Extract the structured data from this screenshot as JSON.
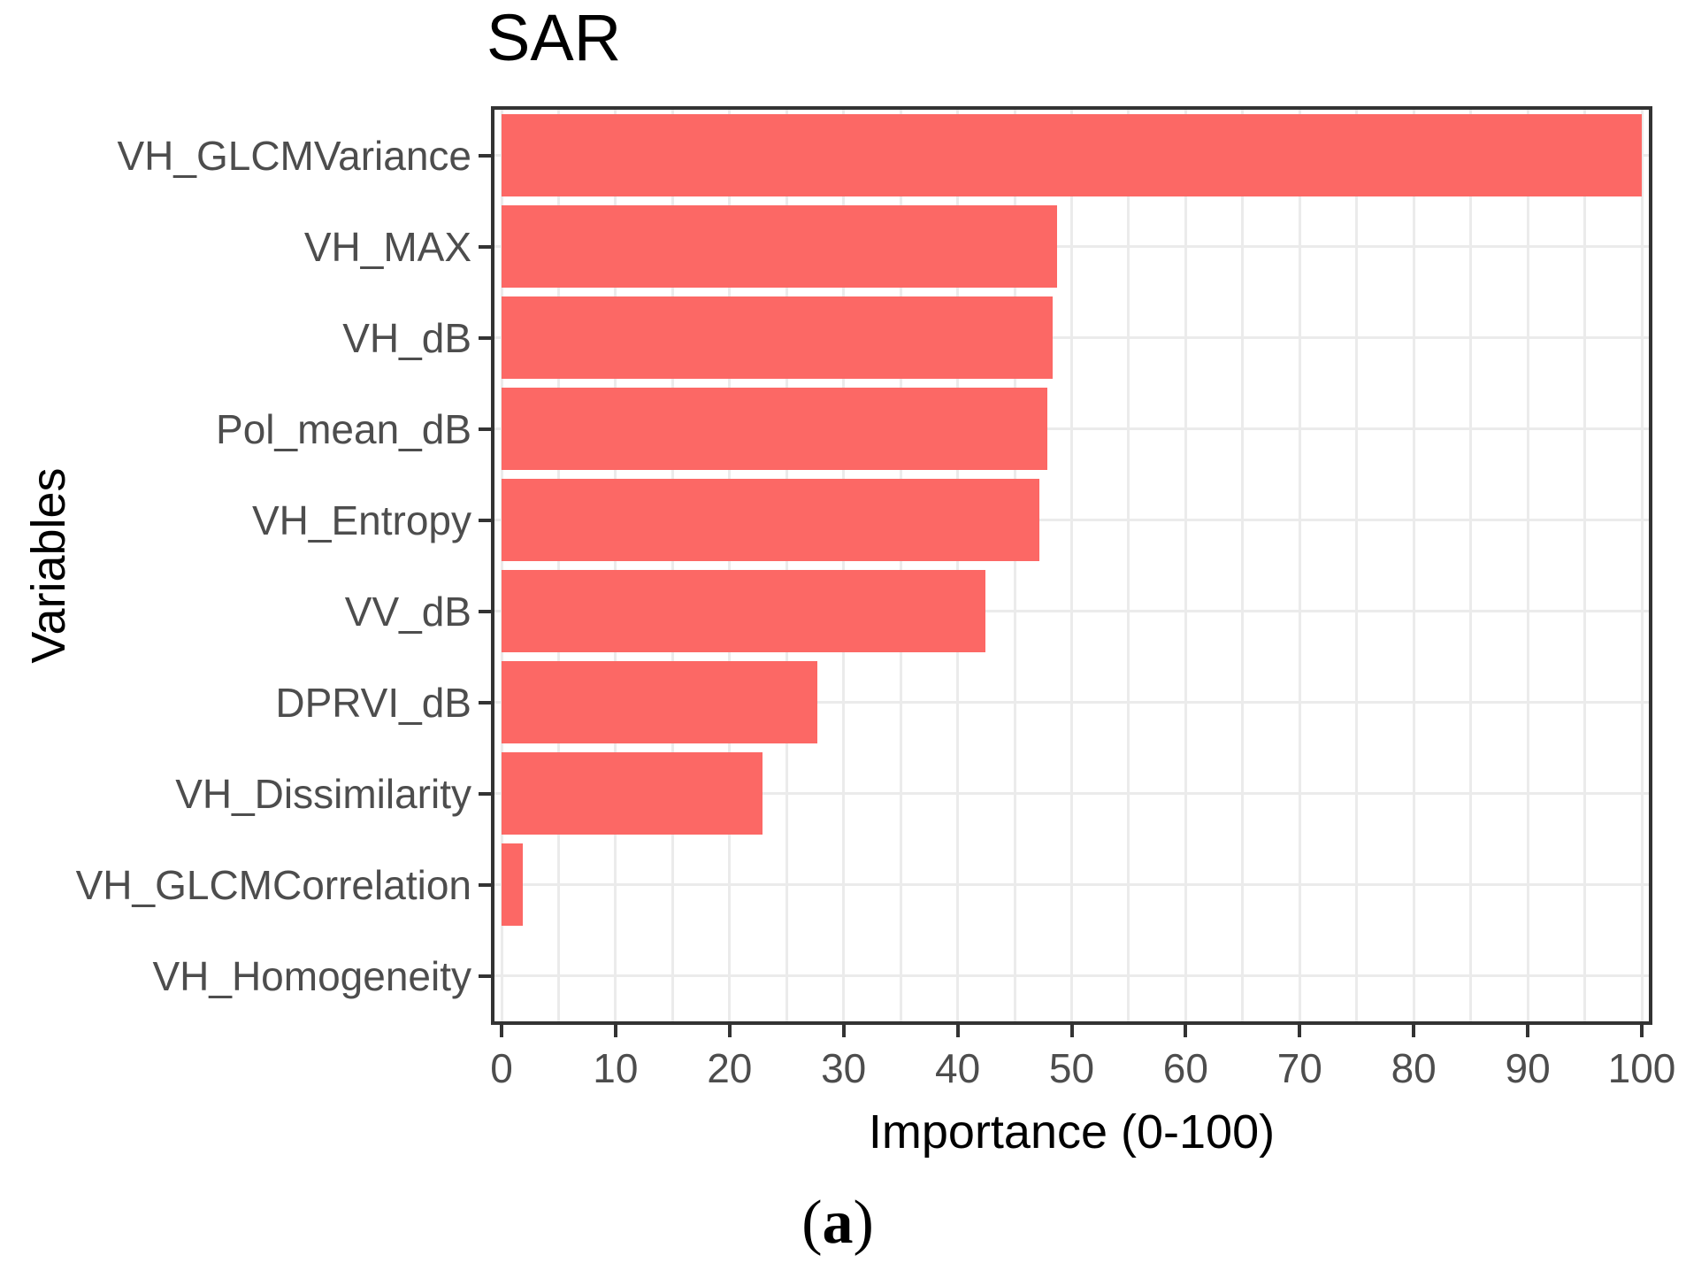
{
  "figure": {
    "caption": {
      "open": "(",
      "letter": "a",
      "close": ")"
    }
  },
  "colors": {
    "bar_fill": "#FC6865",
    "gridline": "#EBEBEB",
    "panel_border": "#333333",
    "tick_mark": "#333333",
    "tick_text": "#4D4D4D",
    "title_text": "#000000"
  },
  "chart_data": {
    "type": "bar",
    "orientation": "horizontal",
    "title": "SAR",
    "xlabel": "Importance (0-100)",
    "ylabel": "Variables",
    "xlim": [
      0,
      100
    ],
    "x_major_ticks": [
      0,
      10,
      20,
      30,
      40,
      50,
      60,
      70,
      80,
      90,
      100
    ],
    "x_gridline_step": 5,
    "grid": "on",
    "legend": "none",
    "categories": [
      "VH_GLCMVariance",
      "VH_MAX",
      "VH_dB",
      "Pol_mean_dB",
      "VH_Entropy",
      "VV_dB",
      "DPRVI_dB",
      "VH_Dissimilarity",
      "VH_GLCMCorrelation",
      "VH_Homogeneity"
    ],
    "values": [
      100,
      48.7,
      48.3,
      47.9,
      47.2,
      42.4,
      27.7,
      22.9,
      1.9,
      0
    ]
  }
}
